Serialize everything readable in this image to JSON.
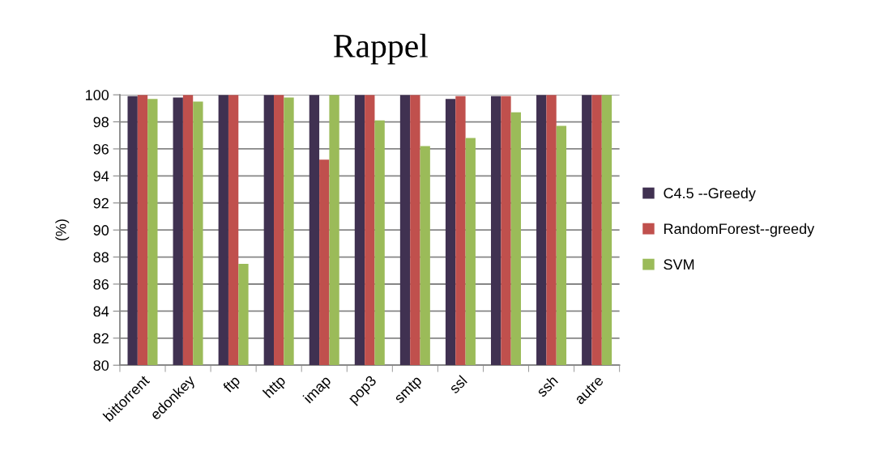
{
  "chart_data": {
    "type": "bar",
    "title": "Rappel",
    "ylabel": "(%)",
    "categories": [
      "bittorrent",
      "edonkey",
      "ftp",
      "http",
      "imap",
      "pop3",
      "smtp",
      "ssl",
      null,
      "ssh",
      "autre"
    ],
    "series": [
      {
        "name": "C4.5 --Greedy",
        "color": "#403151",
        "values": [
          99.9,
          99.8,
          100,
          100,
          100,
          100,
          100,
          99.7,
          99.9,
          100,
          100
        ]
      },
      {
        "name": "RandomForest--greedy",
        "color": "#c0504d",
        "values": [
          100,
          100,
          100,
          100,
          95.2,
          100,
          100,
          99.9,
          99.9,
          100,
          100
        ]
      },
      {
        "name": "SVM",
        "color": "#9bbb59",
        "values": [
          99.7,
          99.5,
          87.5,
          99.8,
          100,
          98.1,
          96.2,
          96.8,
          98.7,
          97.7,
          100
        ]
      }
    ],
    "ylim": [
      80,
      100
    ],
    "yticks": [
      80,
      82,
      84,
      86,
      88,
      90,
      92,
      94,
      96,
      98,
      100
    ],
    "grid": "y",
    "legend": "right"
  }
}
